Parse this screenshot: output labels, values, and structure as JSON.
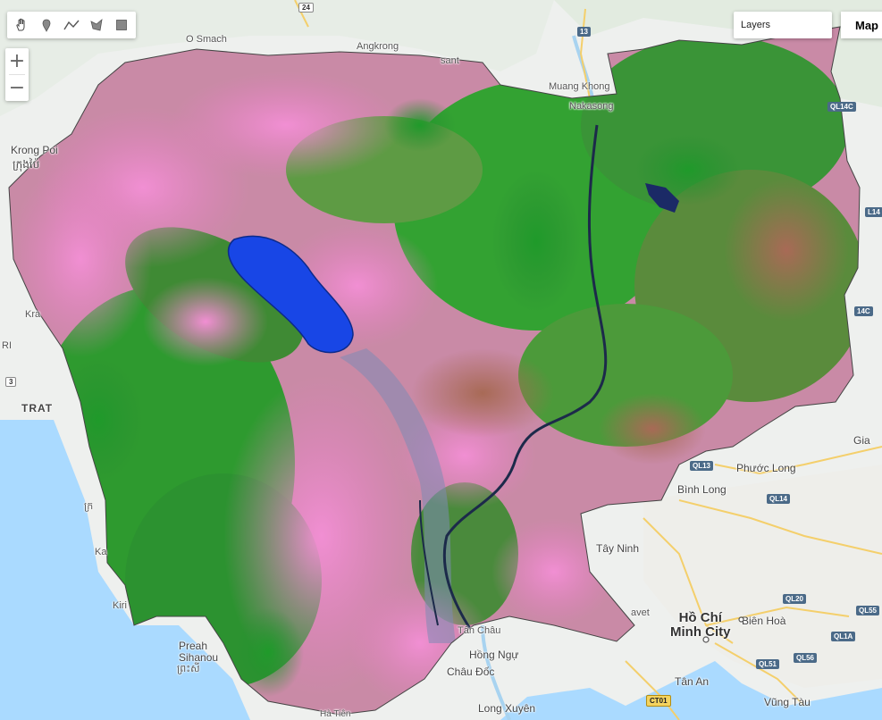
{
  "toolbar": {
    "tools": [
      {
        "icon": "hand-icon"
      },
      {
        "icon": "point-marker-icon"
      },
      {
        "icon": "line-icon"
      },
      {
        "icon": "polygon-icon"
      },
      {
        "icon": "rectangle-icon"
      }
    ]
  },
  "zoom": {
    "in_label": "+",
    "out_label": "−"
  },
  "layers_label": "Layers",
  "map_type_label": "Map",
  "place_labels": {
    "o_smach": "O Smach",
    "angkrong": "Angkrong",
    "sant": "sant",
    "muang_khong": "Muang Khong",
    "nakasong": "Nakasong",
    "krong_poi": "Krong Poi",
    "krong_poi_khmer": "ក្រុងប៉ៃ",
    "trat": "TRAT",
    "kra": "Kra",
    "ri": "RI",
    "khmer_left": "ក្រ",
    "ka": "Ka",
    "kiri": "Kiri",
    "preah_sihanouk": "Preah\nSihanou",
    "preah_khmer": "ព្រះសី",
    "gia": "Gia",
    "phuoc_long": "Phước Long",
    "binh_long": "Bình Long",
    "tay_ninh": "Tây Ninh",
    "ho_chi_minh_city": "Hồ Chí\nMinh City",
    "bien_hoa": "Biên Hoà",
    "tan_an": "Tân An",
    "vung_tau": "Vũng Tàu",
    "long_xuyen": "Long Xuyên",
    "chau_doc": "Châu Đốc",
    "hong_ngu": "Hồng Ngự",
    "tan_chau": "Tân Châu",
    "ha_tien": "Hà Tiên",
    "avet": "avet"
  },
  "road_shields": {
    "r24": "24",
    "r13": "13",
    "r3": "3",
    "ql14c_top": "QL14C",
    "ql14c_mid": "14C",
    "l14": "L14",
    "ql13": "QL13",
    "ql14": "QL14",
    "ql20": "QL20",
    "ql55": "QL55",
    "ql1a": "QL1A",
    "ql51": "QL51",
    "ql56": "QL56",
    "ct01": "CT01"
  }
}
